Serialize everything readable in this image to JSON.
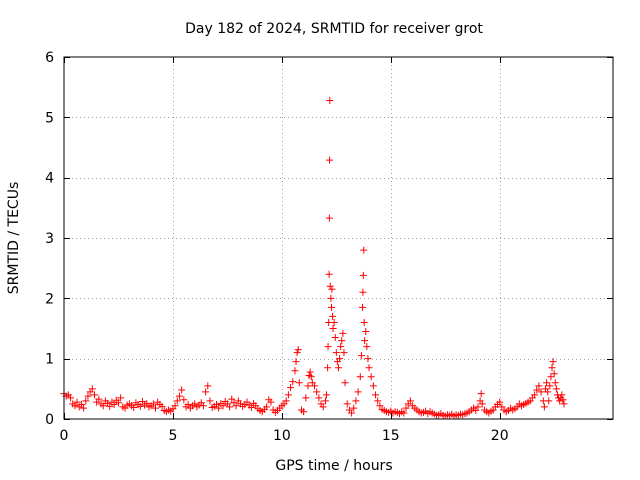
{
  "chart_data": {
    "type": "scatter",
    "title": "Day 182 of 2024, SRMTID for receiver grot",
    "xlabel": "GPS time / hours",
    "ylabel": "SRMTID / TECUs",
    "xlim": [
      0,
      25.2
    ],
    "ylim": [
      0,
      6
    ],
    "xticks": [
      0,
      5,
      10,
      15,
      20
    ],
    "yticks": [
      0,
      1,
      2,
      3,
      4,
      5,
      6
    ],
    "grid": true,
    "marker": "+",
    "color": "#ff0000",
    "series": [
      {
        "name": "SRMTID",
        "points": [
          [
            0.0,
            0.42
          ],
          [
            0.1,
            0.38
          ],
          [
            0.2,
            0.4
          ],
          [
            0.3,
            0.35
          ],
          [
            0.4,
            0.25
          ],
          [
            0.5,
            0.22
          ],
          [
            0.6,
            0.28
          ],
          [
            0.7,
            0.2
          ],
          [
            0.8,
            0.24
          ],
          [
            0.9,
            0.18
          ],
          [
            1.0,
            0.3
          ],
          [
            1.1,
            0.38
          ],
          [
            1.2,
            0.45
          ],
          [
            1.3,
            0.5
          ],
          [
            1.4,
            0.4
          ],
          [
            1.5,
            0.28
          ],
          [
            1.6,
            0.33
          ],
          [
            1.7,
            0.25
          ],
          [
            1.8,
            0.22
          ],
          [
            1.9,
            0.3
          ],
          [
            2.0,
            0.26
          ],
          [
            2.1,
            0.21
          ],
          [
            2.2,
            0.28
          ],
          [
            2.3,
            0.24
          ],
          [
            2.4,
            0.31
          ],
          [
            2.5,
            0.27
          ],
          [
            2.6,
            0.35
          ],
          [
            2.7,
            0.2
          ],
          [
            2.8,
            0.18
          ],
          [
            2.9,
            0.23
          ],
          [
            3.0,
            0.25
          ],
          [
            3.1,
            0.22
          ],
          [
            3.2,
            0.19
          ],
          [
            3.3,
            0.27
          ],
          [
            3.4,
            0.24
          ],
          [
            3.5,
            0.21
          ],
          [
            3.6,
            0.29
          ],
          [
            3.7,
            0.23
          ],
          [
            3.8,
            0.26
          ],
          [
            3.9,
            0.2
          ],
          [
            4.0,
            0.22
          ],
          [
            4.1,
            0.25
          ],
          [
            4.2,
            0.18
          ],
          [
            4.3,
            0.28
          ],
          [
            4.4,
            0.24
          ],
          [
            4.5,
            0.21
          ],
          [
            4.6,
            0.14
          ],
          [
            4.7,
            0.12
          ],
          [
            4.8,
            0.15
          ],
          [
            4.9,
            0.13
          ],
          [
            5.0,
            0.17
          ],
          [
            5.1,
            0.22
          ],
          [
            5.2,
            0.3
          ],
          [
            5.3,
            0.38
          ],
          [
            5.4,
            0.48
          ],
          [
            5.5,
            0.32
          ],
          [
            5.6,
            0.2
          ],
          [
            5.7,
            0.24
          ],
          [
            5.8,
            0.18
          ],
          [
            5.9,
            0.22
          ],
          [
            6.0,
            0.25
          ],
          [
            6.1,
            0.2
          ],
          [
            6.2,
            0.23
          ],
          [
            6.3,
            0.27
          ],
          [
            6.4,
            0.22
          ],
          [
            6.5,
            0.45
          ],
          [
            6.6,
            0.55
          ],
          [
            6.7,
            0.3
          ],
          [
            6.8,
            0.19
          ],
          [
            6.9,
            0.21
          ],
          [
            7.0,
            0.24
          ],
          [
            7.1,
            0.18
          ],
          [
            7.2,
            0.26
          ],
          [
            7.3,
            0.22
          ],
          [
            7.4,
            0.29
          ],
          [
            7.5,
            0.25
          ],
          [
            7.6,
            0.2
          ],
          [
            7.7,
            0.33
          ],
          [
            7.8,
            0.27
          ],
          [
            7.9,
            0.22
          ],
          [
            8.0,
            0.3
          ],
          [
            8.1,
            0.25
          ],
          [
            8.2,
            0.21
          ],
          [
            8.3,
            0.24
          ],
          [
            8.4,
            0.28
          ],
          [
            8.5,
            0.23
          ],
          [
            8.6,
            0.19
          ],
          [
            8.7,
            0.26
          ],
          [
            8.8,
            0.22
          ],
          [
            8.9,
            0.17
          ],
          [
            9.0,
            0.14
          ],
          [
            9.1,
            0.12
          ],
          [
            9.2,
            0.16
          ],
          [
            9.3,
            0.2
          ],
          [
            9.4,
            0.32
          ],
          [
            9.5,
            0.28
          ],
          [
            9.6,
            0.15
          ],
          [
            9.7,
            0.11
          ],
          [
            9.8,
            0.14
          ],
          [
            9.9,
            0.18
          ],
          [
            10.0,
            0.22
          ],
          [
            10.1,
            0.25
          ],
          [
            10.2,
            0.3
          ],
          [
            10.3,
            0.4
          ],
          [
            10.4,
            0.52
          ],
          [
            10.5,
            0.62
          ],
          [
            10.6,
            0.8
          ],
          [
            10.65,
            0.95
          ],
          [
            10.7,
            1.1
          ],
          [
            10.75,
            1.15
          ],
          [
            10.8,
            0.6
          ],
          [
            10.9,
            0.15
          ],
          [
            11.0,
            0.12
          ],
          [
            11.1,
            0.35
          ],
          [
            11.2,
            0.55
          ],
          [
            11.25,
            0.72
          ],
          [
            11.3,
            0.78
          ],
          [
            11.35,
            0.7
          ],
          [
            11.4,
            0.6
          ],
          [
            11.5,
            0.55
          ],
          [
            11.6,
            0.45
          ],
          [
            11.7,
            0.35
          ],
          [
            11.8,
            0.25
          ],
          [
            11.9,
            0.2
          ],
          [
            12.0,
            0.3
          ],
          [
            12.05,
            0.4
          ],
          [
            12.1,
            0.85
          ],
          [
            12.12,
            1.2
          ],
          [
            12.15,
            1.6
          ],
          [
            12.17,
            2.4
          ],
          [
            12.18,
            3.33
          ],
          [
            12.19,
            4.29
          ],
          [
            12.2,
            5.28
          ],
          [
            12.22,
            2.2
          ],
          [
            12.25,
            2.0
          ],
          [
            12.28,
            1.85
          ],
          [
            12.3,
            2.15
          ],
          [
            12.33,
            1.7
          ],
          [
            12.35,
            1.5
          ],
          [
            12.4,
            1.6
          ],
          [
            12.45,
            1.35
          ],
          [
            12.5,
            1.1
          ],
          [
            12.55,
            0.95
          ],
          [
            12.6,
            0.85
          ],
          [
            12.65,
            1.0
          ],
          [
            12.7,
            1.2
          ],
          [
            12.75,
            1.3
          ],
          [
            12.8,
            1.42
          ],
          [
            12.85,
            1.1
          ],
          [
            12.9,
            0.6
          ],
          [
            13.0,
            0.25
          ],
          [
            13.1,
            0.15
          ],
          [
            13.2,
            0.1
          ],
          [
            13.3,
            0.18
          ],
          [
            13.4,
            0.3
          ],
          [
            13.5,
            0.45
          ],
          [
            13.6,
            0.7
          ],
          [
            13.65,
            1.05
          ],
          [
            13.7,
            1.85
          ],
          [
            13.72,
            2.1
          ],
          [
            13.74,
            2.38
          ],
          [
            13.76,
            2.8
          ],
          [
            13.78,
            1.6
          ],
          [
            13.8,
            1.3
          ],
          [
            13.85,
            1.45
          ],
          [
            13.9,
            1.2
          ],
          [
            13.95,
            1.0
          ],
          [
            14.0,
            0.85
          ],
          [
            14.1,
            0.7
          ],
          [
            14.2,
            0.55
          ],
          [
            14.3,
            0.4
          ],
          [
            14.4,
            0.3
          ],
          [
            14.5,
            0.22
          ],
          [
            14.6,
            0.16
          ],
          [
            14.7,
            0.14
          ],
          [
            14.8,
            0.12
          ],
          [
            14.9,
            0.11
          ],
          [
            15.0,
            0.13
          ],
          [
            15.1,
            0.1
          ],
          [
            15.2,
            0.12
          ],
          [
            15.3,
            0.11
          ],
          [
            15.4,
            0.09
          ],
          [
            15.5,
            0.12
          ],
          [
            15.6,
            0.1
          ],
          [
            15.7,
            0.18
          ],
          [
            15.8,
            0.25
          ],
          [
            15.9,
            0.3
          ],
          [
            16.0,
            0.22
          ],
          [
            16.1,
            0.18
          ],
          [
            16.2,
            0.15
          ],
          [
            16.3,
            0.12
          ],
          [
            16.4,
            0.1
          ],
          [
            16.5,
            0.11
          ],
          [
            16.6,
            0.13
          ],
          [
            16.7,
            0.09
          ],
          [
            16.8,
            0.12
          ],
          [
            16.9,
            0.1
          ],
          [
            17.0,
            0.08
          ],
          [
            17.1,
            0.06
          ],
          [
            17.2,
            0.07
          ],
          [
            17.3,
            0.09
          ],
          [
            17.4,
            0.06
          ],
          [
            17.5,
            0.05
          ],
          [
            17.6,
            0.07
          ],
          [
            17.7,
            0.06
          ],
          [
            17.8,
            0.08
          ],
          [
            17.9,
            0.05
          ],
          [
            18.0,
            0.07
          ],
          [
            18.1,
            0.06
          ],
          [
            18.2,
            0.08
          ],
          [
            18.3,
            0.07
          ],
          [
            18.4,
            0.09
          ],
          [
            18.5,
            0.1
          ],
          [
            18.6,
            0.12
          ],
          [
            18.7,
            0.15
          ],
          [
            18.8,
            0.18
          ],
          [
            18.9,
            0.14
          ],
          [
            19.0,
            0.2
          ],
          [
            19.1,
            0.3
          ],
          [
            19.15,
            0.42
          ],
          [
            19.2,
            0.25
          ],
          [
            19.3,
            0.15
          ],
          [
            19.4,
            0.12
          ],
          [
            19.5,
            0.1
          ],
          [
            19.6,
            0.13
          ],
          [
            19.7,
            0.15
          ],
          [
            19.8,
            0.2
          ],
          [
            19.9,
            0.24
          ],
          [
            20.0,
            0.28
          ],
          [
            20.1,
            0.2
          ],
          [
            20.2,
            0.15
          ],
          [
            20.3,
            0.12
          ],
          [
            20.4,
            0.14
          ],
          [
            20.5,
            0.18
          ],
          [
            20.6,
            0.15
          ],
          [
            20.7,
            0.17
          ],
          [
            20.8,
            0.2
          ],
          [
            20.9,
            0.25
          ],
          [
            21.0,
            0.22
          ],
          [
            21.1,
            0.24
          ],
          [
            21.2,
            0.26
          ],
          [
            21.3,
            0.28
          ],
          [
            21.4,
            0.3
          ],
          [
            21.5,
            0.35
          ],
          [
            21.6,
            0.4
          ],
          [
            21.7,
            0.48
          ],
          [
            21.8,
            0.55
          ],
          [
            21.9,
            0.45
          ],
          [
            22.0,
            0.3
          ],
          [
            22.05,
            0.2
          ],
          [
            22.1,
            0.5
          ],
          [
            22.15,
            0.6
          ],
          [
            22.2,
            0.45
          ],
          [
            22.25,
            0.3
          ],
          [
            22.3,
            0.55
          ],
          [
            22.35,
            0.7
          ],
          [
            22.4,
            0.85
          ],
          [
            22.45,
            0.95
          ],
          [
            22.5,
            0.75
          ],
          [
            22.55,
            0.6
          ],
          [
            22.6,
            0.5
          ],
          [
            22.65,
            0.4
          ],
          [
            22.7,
            0.35
          ],
          [
            22.75,
            0.3
          ],
          [
            22.8,
            0.35
          ],
          [
            22.85,
            0.4
          ],
          [
            22.9,
            0.32
          ],
          [
            22.95,
            0.25
          ]
        ]
      }
    ]
  }
}
